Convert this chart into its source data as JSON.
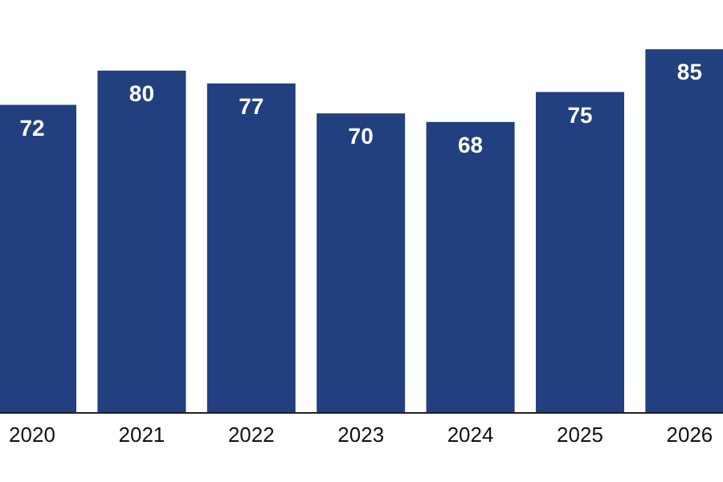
{
  "chart_data": {
    "type": "bar",
    "categories": [
      "2020",
      "2021",
      "2022",
      "2023",
      "2024",
      "2025",
      "2026"
    ],
    "values": [
      72,
      80,
      77,
      70,
      68,
      75,
      85
    ],
    "color": "#223f80",
    "data_labels": true
  }
}
